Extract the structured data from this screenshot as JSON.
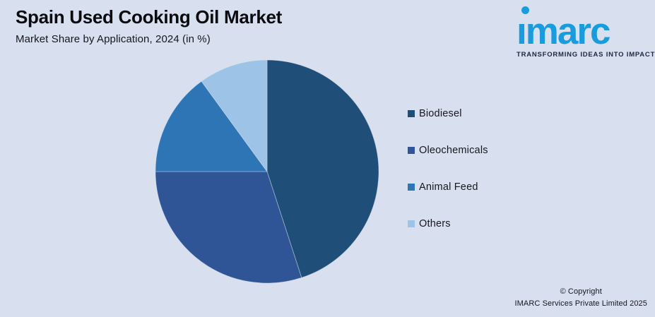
{
  "header": {
    "title": "Spain Used Cooking Oil Market",
    "subtitle": "Market Share by Application, 2024 (in %)"
  },
  "logo": {
    "wordmark": "imarc",
    "tagline": "TRANSFORMING IDEAS INTO IMPACT",
    "brand_color": "#189cdd",
    "tagline_color": "#1c2742"
  },
  "chart_data": {
    "type": "pie",
    "title": "Spain Used Cooking Oil Market",
    "subtitle": "Market Share by Application, 2024 (in %)",
    "categories": [
      "Biodiesel",
      "Oleochemicals",
      "Animal Feed",
      "Others"
    ],
    "values": [
      45,
      30,
      15,
      10
    ],
    "unit": "%",
    "colors": [
      "#1F4E79",
      "#2F5597",
      "#2E75B6",
      "#9DC3E6"
    ],
    "start_angle_deg": 0,
    "direction": "clockwise",
    "data_labels": false,
    "legend_position": "right"
  },
  "footer": {
    "line1": "© Copyright",
    "line2": "IMARC Services Private Limited 2025"
  },
  "colors": {
    "background": "#d8e0ef"
  }
}
